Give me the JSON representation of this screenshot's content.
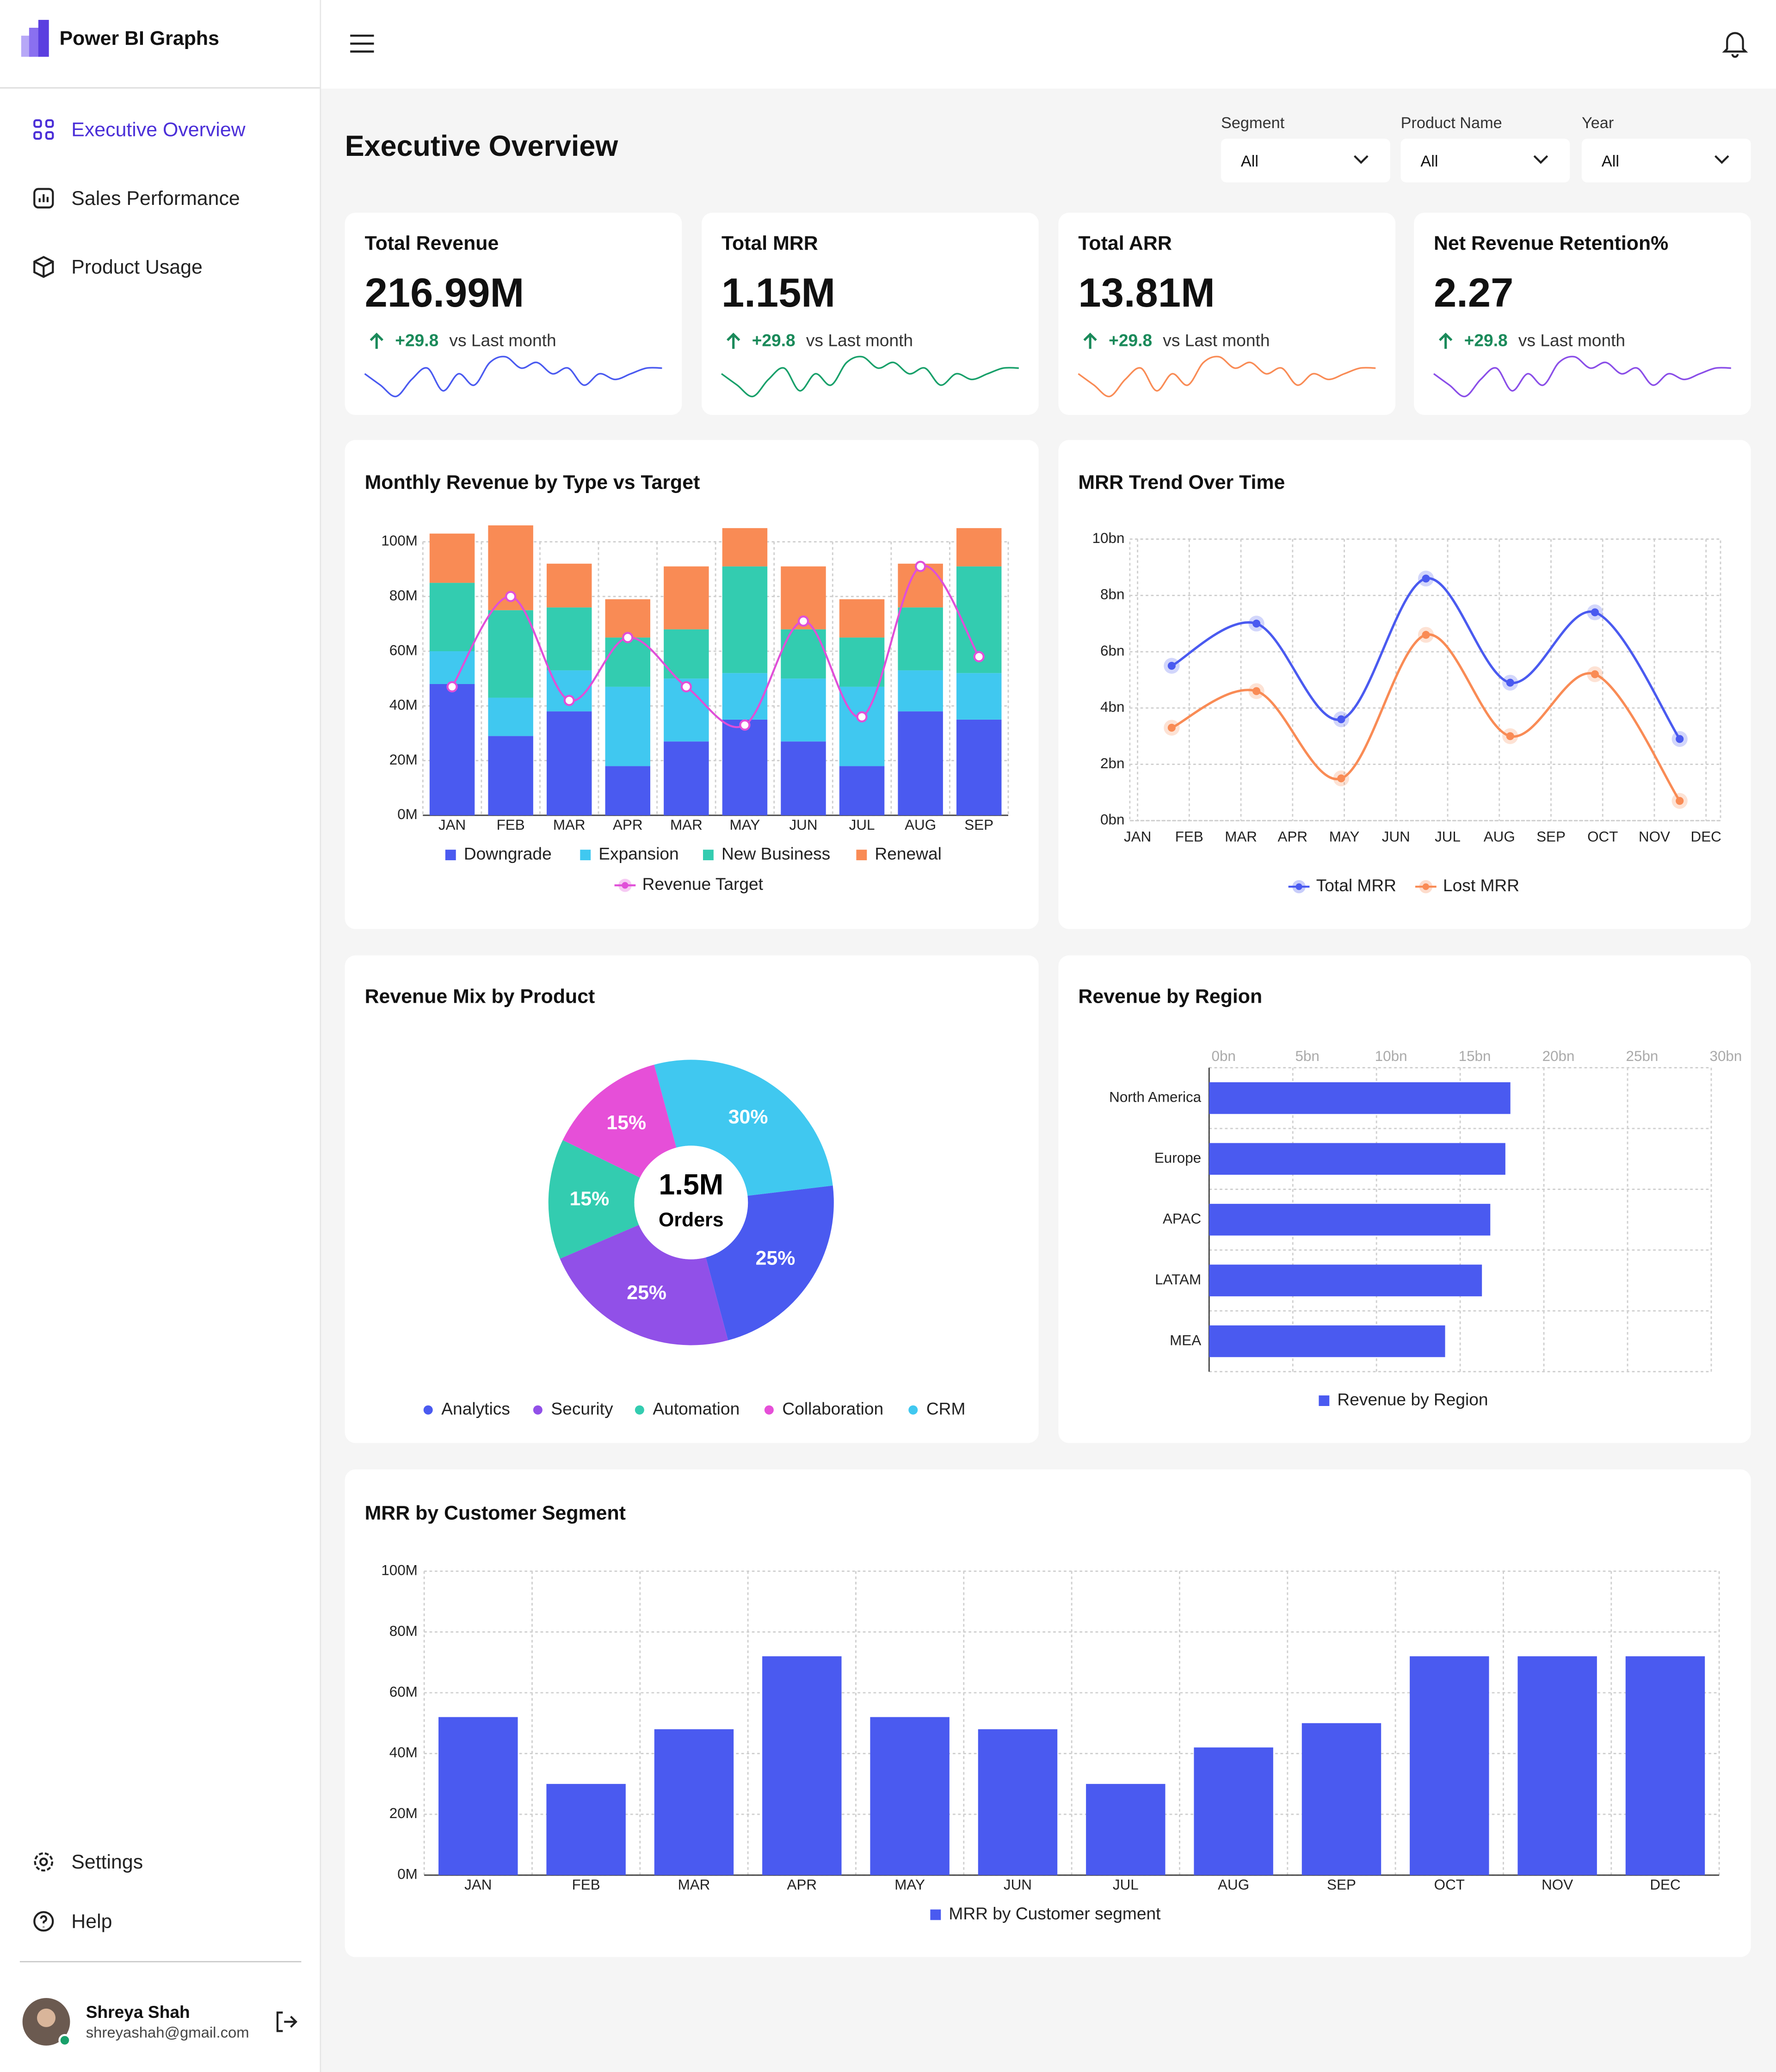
{
  "sidebar": {
    "brand": "Power BI Graphs",
    "nav": [
      "Executive Overview",
      "Sales Performance",
      "Product Usage"
    ],
    "bottom": [
      "Settings",
      "Help"
    ],
    "user": {
      "name": "Shreya Shah",
      "email": "shreyashah@gmail.com"
    }
  },
  "header": {
    "title": "Executive Overview",
    "filters": [
      {
        "label": "Segment",
        "value": "All"
      },
      {
        "label": "Product Name",
        "value": "All"
      },
      {
        "label": "Year",
        "value": "All"
      }
    ]
  },
  "kpis": [
    {
      "title": "Total Revenue",
      "value": "216.99M",
      "delta": "+29.8",
      "delta_text": "vs Last month",
      "color": "#4a5af0",
      "spark": [
        6,
        4,
        2,
        5,
        7,
        3,
        6,
        4,
        8,
        9,
        7,
        8,
        6,
        7,
        4,
        6,
        5,
        6,
        7,
        7
      ]
    },
    {
      "title": "Total MRR",
      "value": "1.15M",
      "delta": "+29.8",
      "delta_text": "vs Last month",
      "color": "#18a06a",
      "spark": [
        6,
        4,
        2,
        5,
        7,
        3,
        6,
        4,
        8,
        9,
        7,
        8,
        6,
        7,
        4,
        6,
        5,
        6,
        7,
        7
      ]
    },
    {
      "title": "Total ARR",
      "value": "13.81M",
      "delta": "+29.8",
      "delta_text": "vs Last month",
      "color": "#f98b55",
      "spark": [
        6,
        4,
        2,
        5,
        7,
        3,
        6,
        4,
        8,
        9,
        7,
        8,
        6,
        7,
        4,
        6,
        5,
        6,
        7,
        7
      ]
    },
    {
      "title": "Net Revenue Retention%",
      "value": "2.27",
      "delta": "+29.8",
      "delta_text": "vs Last month",
      "color": "#8a4ee8",
      "spark": [
        6,
        4,
        2,
        5,
        7,
        3,
        6,
        4,
        8,
        9,
        7,
        8,
        6,
        7,
        4,
        6,
        5,
        6,
        7,
        7
      ]
    }
  ],
  "chart_data": [
    {
      "type": "stacked_bar",
      "title": "Monthly Revenue by Type vs Target",
      "categories": [
        "JAN",
        "FEB",
        "MAR",
        "APR",
        "MAR",
        "MAY",
        "JUN",
        "JUL",
        "AUG",
        "SEP"
      ],
      "series": [
        {
          "name": "Downgrade",
          "color": "#4a5af0",
          "values": [
            48,
            29,
            38,
            18,
            27,
            35,
            27,
            18,
            38,
            35
          ]
        },
        {
          "name": "Expansion",
          "color": "#40c8f0",
          "values": [
            12,
            14,
            15,
            29,
            23,
            17,
            23,
            29,
            15,
            17
          ]
        },
        {
          "name": "New Business",
          "color": "#33ccb0",
          "values": [
            25,
            32,
            23,
            18,
            18,
            39,
            18,
            18,
            23,
            39
          ]
        },
        {
          "name": "Renewal",
          "color": "#f98b55",
          "values": [
            18,
            31,
            16,
            14,
            23,
            14,
            23,
            14,
            16,
            14
          ]
        }
      ],
      "line": {
        "name": "Revenue Target",
        "color": "#e04fd8",
        "values": [
          47,
          80,
          42,
          65,
          47,
          33,
          71,
          36,
          91,
          58
        ]
      },
      "ylim": [
        0,
        105
      ],
      "yticks": [
        {
          "value": 0,
          "label": "0M"
        },
        {
          "value": 20,
          "label": "20M"
        },
        {
          "value": 40,
          "label": "40M"
        },
        {
          "value": 60,
          "label": "60M"
        },
        {
          "value": 80,
          "label": "80M"
        },
        {
          "value": 100,
          "label": "100M"
        }
      ],
      "grid": true
    },
    {
      "type": "line",
      "title": "MRR Trend Over Time",
      "x": [
        0.66,
        2.3,
        3.94,
        5.58,
        7.21,
        8.85,
        10.49
      ],
      "series": [
        {
          "name": "Total MRR",
          "color": "#4a5af0",
          "values": [
            5.5,
            7.0,
            3.6,
            8.6,
            4.9,
            7.4,
            2.9
          ]
        },
        {
          "name": "Lost MRR",
          "color": "#f98b55",
          "values": [
            3.3,
            4.6,
            1.5,
            6.6,
            3.0,
            5.2,
            0.7
          ]
        }
      ],
      "xlim": [
        -0.15,
        11.28
      ],
      "xticks": [
        {
          "value": 0,
          "label": "JAN"
        },
        {
          "value": 1,
          "label": "FEB"
        },
        {
          "value": 2,
          "label": "MAR"
        },
        {
          "value": 3,
          "label": "APR"
        },
        {
          "value": 4,
          "label": "MAY"
        },
        {
          "value": 5,
          "label": "JUN"
        },
        {
          "value": 6,
          "label": "JUL"
        },
        {
          "value": 7,
          "label": "AUG"
        },
        {
          "value": 8,
          "label": "SEP"
        },
        {
          "value": 9,
          "label": "OCT"
        },
        {
          "value": 10,
          "label": "NOV"
        },
        {
          "value": 11,
          "label": "DEC"
        }
      ],
      "ylim": [
        0,
        10
      ],
      "yticks": [
        {
          "value": 0,
          "label": "0bn"
        },
        {
          "value": 2,
          "label": "2bn"
        },
        {
          "value": 4,
          "label": "4bn"
        },
        {
          "value": 6,
          "label": "6bn"
        },
        {
          "value": 8,
          "label": "8bn"
        },
        {
          "value": 10,
          "label": "10bn"
        }
      ],
      "grid": true
    },
    {
      "type": "donut",
      "title": "Revenue Mix by Product",
      "categories": [
        "Analytics",
        "Security",
        "Automation",
        "Collaboration",
        "CRM"
      ],
      "values": [
        25,
        25,
        15,
        15,
        30
      ],
      "value_labels": [
        "25%",
        "25%",
        "15%",
        "15%",
        "30%"
      ],
      "colors": [
        "#4a5af0",
        "#9150e8",
        "#33ccb0",
        "#e64fd8",
        "#40c8f0"
      ],
      "center_label": "1.5M",
      "center_sublabel": "Orders"
    },
    {
      "type": "hbar",
      "title": "Revenue by Region",
      "categories": [
        "North America",
        "Europe",
        "APAC",
        "LATAM",
        "MEA"
      ],
      "series": [
        {
          "name": "Revenue by Region",
          "color": "#4a5af0",
          "values": [
            18.0,
            17.7,
            16.8,
            16.3,
            14.1
          ]
        }
      ],
      "xlim": [
        0,
        30
      ],
      "xticks": [
        {
          "value": 0,
          "label": "0bn"
        },
        {
          "value": 5,
          "label": "5bn"
        },
        {
          "value": 10,
          "label": "10bn"
        },
        {
          "value": 15,
          "label": "15bn"
        },
        {
          "value": 20,
          "label": "20bn"
        },
        {
          "value": 25,
          "label": "25bn"
        },
        {
          "value": 30,
          "label": "30bn"
        }
      ],
      "grid": true
    },
    {
      "type": "bar",
      "title": "MRR by Customer Segment",
      "categories": [
        "JAN",
        "FEB",
        "MAR",
        "APR",
        "MAY",
        "JUN",
        "JUL",
        "AUG",
        "SEP",
        "OCT",
        "NOV",
        "DEC"
      ],
      "series": [
        {
          "name": "MRR by Customer segment",
          "color": "#4a5af0",
          "values": [
            52,
            30,
            48,
            72,
            52,
            48,
            30,
            42,
            50,
            72,
            72,
            72
          ]
        }
      ],
      "ylim": [
        0,
        100
      ],
      "yticks": [
        {
          "value": 0,
          "label": "0M"
        },
        {
          "value": 20,
          "label": "20M"
        },
        {
          "value": 40,
          "label": "40M"
        },
        {
          "value": 60,
          "label": "60M"
        },
        {
          "value": 80,
          "label": "80M"
        },
        {
          "value": 100,
          "label": "100M"
        }
      ],
      "grid": true
    }
  ]
}
